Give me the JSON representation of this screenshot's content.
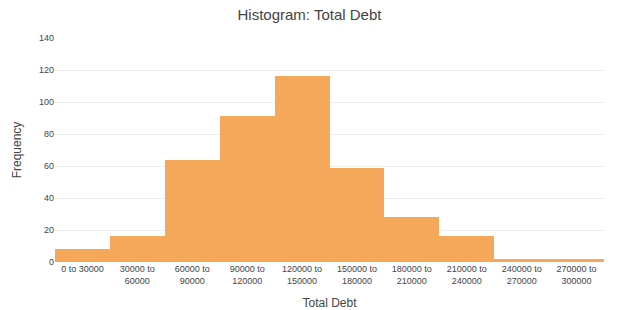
{
  "chart_data": {
    "type": "bar",
    "title": "Histogram: Total Debt",
    "xlabel": "Total Debt",
    "ylabel": "Frequency",
    "categories": [
      "0 to 30000",
      "30000 to\n60000",
      "60000 to\n90000",
      "90000 to\n120000",
      "120000 to\n150000",
      "150000 to\n180000",
      "180000 to\n210000",
      "210000 to\n240000",
      "240000 to\n270000",
      "270000 to\n300000"
    ],
    "values": [
      8,
      16,
      64,
      91,
      116,
      59,
      28,
      16,
      2,
      2
    ],
    "color": "#F5A85A",
    "ylim": [
      0,
      140
    ],
    "yticks": [
      0,
      20,
      40,
      60,
      80,
      100,
      120,
      140
    ],
    "grid": true
  }
}
